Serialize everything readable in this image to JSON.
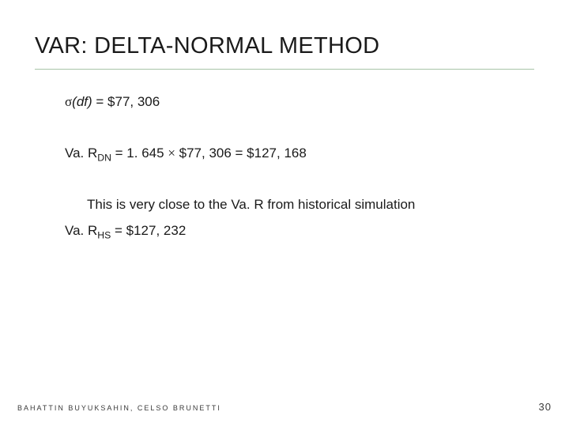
{
  "slide": {
    "title": "VAR: DELTA-NORMAL METHOD",
    "line_sigma_prefix": "σ",
    "line_sigma_df": "(df)",
    "line_sigma_rest": " = $77, 306",
    "line_vardn_pre": "Va. R",
    "line_vardn_sub": "DN",
    "line_vardn_mid": " =  1. 645 ",
    "line_vardn_times": "×",
    "line_vardn_rest": " $77, 306 = $127, 168",
    "line_note": "This is very close to the Va. R from historical simulation",
    "line_varhs_pre": "Va. R",
    "line_varhs_sub": "HS",
    "line_varhs_rest": " =  $127, 232",
    "footer_authors": "BAHATTIN BUYUKSAHIN, CELSO BRUNETTI",
    "footer_page": "30"
  },
  "style": {
    "background_color": "#ffffff",
    "title_fontsize": 29,
    "body_fontsize": 17,
    "footer_fontsize": 9,
    "pagenum_fontsize": 13,
    "title_color": "#1a1a1a",
    "text_color": "#1a1a1a",
    "footer_color": "#3a3a3a",
    "rule_color": "#a8c4a8"
  }
}
